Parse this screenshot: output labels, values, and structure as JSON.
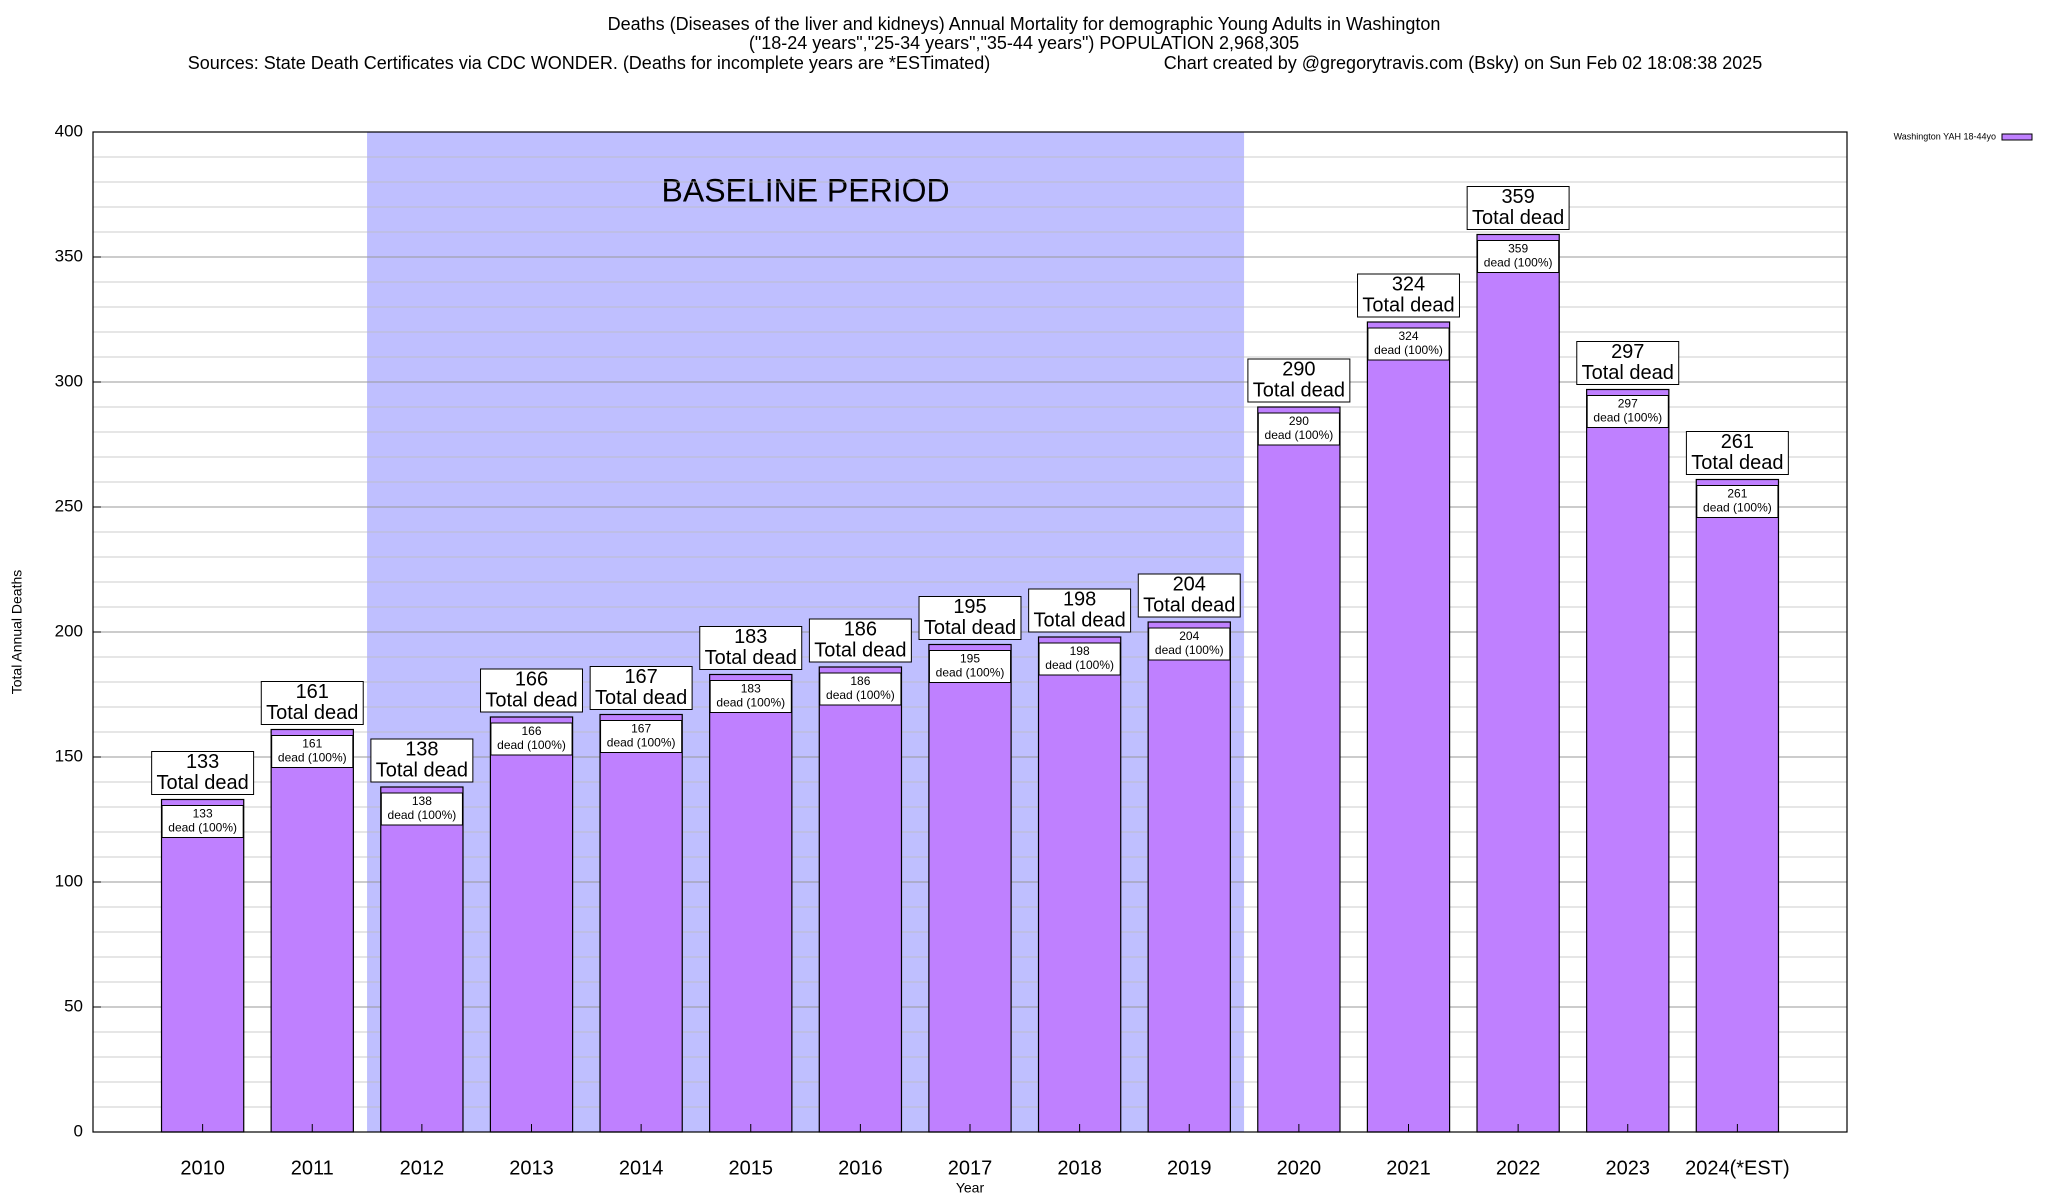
{
  "chart_data": {
    "type": "bar",
    "title_lines": [
      "Deaths (Diseases of the liver and kidneys) Annual Mortality for demographic Young Adults in Washington",
      "(\"18-24 years\",\"25-34 years\",\"35-44 years\") POPULATION 2,968,305"
    ],
    "source": "Sources: State Death Certificates via CDC WONDER. (Deaths for incomplete years are *ESTimated)",
    "credit": "Chart created by @gregorytravis.com (Bsky) on Sun Feb 02 18:08:38 2025",
    "x_label": "Year",
    "y_label": "Total Annual Deaths",
    "categories": [
      "2010",
      "2011",
      "2012",
      "2013",
      "2014",
      "2015",
      "2016",
      "2017",
      "2018",
      "2019",
      "2020",
      "2021",
      "2022",
      "2023",
      "2024(*EST)"
    ],
    "series": [
      {
        "name": "Washington YAH 18-44yo",
        "color": "#bf80ff",
        "values": [
          133,
          161,
          138,
          166,
          167,
          183,
          186,
          195,
          198,
          204,
          290,
          324,
          359,
          297,
          261
        ]
      }
    ],
    "total_label": "Total dead",
    "inner_label": "dead (100%)",
    "baseline": {
      "label": "BASELINE PERIOD",
      "from": "2012",
      "to": "2019",
      "color": "#bfbfff"
    },
    "ylim": [
      0,
      400
    ],
    "yticks": [
      0,
      50,
      100,
      150,
      200,
      250,
      300,
      350,
      400
    ],
    "minor_grid_step": 10,
    "grid": true,
    "legend": "top-right"
  }
}
